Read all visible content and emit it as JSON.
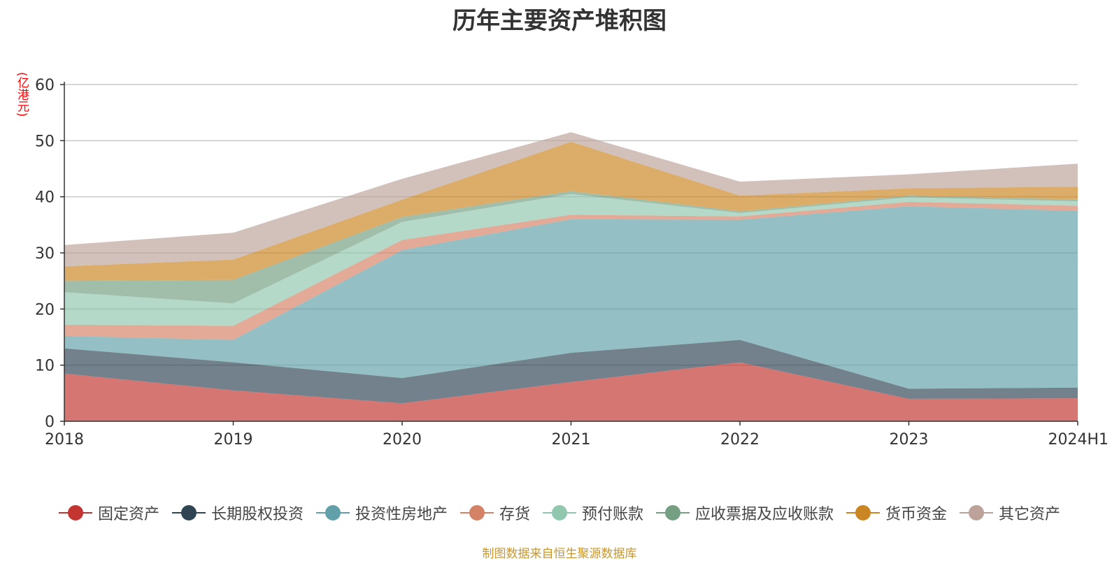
{
  "chart_data": {
    "type": "area",
    "stacked": true,
    "title": "历年主要资产堆积图",
    "ylabel": "(亿港元)",
    "categories": [
      "2018",
      "2019",
      "2020",
      "2021",
      "2022",
      "2023",
      "2024H1"
    ],
    "ylim": [
      0,
      60
    ],
    "yticks": [
      0,
      10,
      20,
      30,
      40,
      50,
      60
    ],
    "grid": true,
    "legend_position": "bottom",
    "series": [
      {
        "name": "固定资产",
        "color": "#c23531",
        "values": [
          8.5,
          5.5,
          3.2,
          7.0,
          10.5,
          4.0,
          4.1
        ]
      },
      {
        "name": "长期股权投资",
        "color": "#2f4554",
        "values": [
          4.5,
          5.0,
          4.5,
          5.2,
          4.0,
          1.8,
          1.9
        ]
      },
      {
        "name": "投资性房地产",
        "color": "#61a0a8",
        "values": [
          2.2,
          4.0,
          22.8,
          23.8,
          21.4,
          32.5,
          31.5
        ]
      },
      {
        "name": "存货",
        "color": "#d48265",
        "values": [
          2.0,
          2.5,
          1.8,
          0.8,
          0.6,
          0.8,
          0.9
        ]
      },
      {
        "name": "预付账款",
        "color": "#91c7ae",
        "values": [
          5.8,
          4.0,
          3.2,
          3.7,
          0.6,
          0.8,
          0.8
        ]
      },
      {
        "name": "应收票据及应收账款",
        "color": "#749f83",
        "values": [
          2.0,
          4.2,
          0.9,
          0.5,
          0.3,
          0.3,
          0.3
        ]
      },
      {
        "name": "货币资金",
        "color": "#ca8622",
        "values": [
          2.6,
          3.6,
          3.1,
          8.8,
          2.8,
          1.3,
          2.3
        ]
      },
      {
        "name": "其它资产",
        "color": "#bda29a",
        "values": [
          3.8,
          4.8,
          3.7,
          1.7,
          2.5,
          2.5,
          4.1
        ]
      }
    ]
  },
  "footer": {
    "source_note": "制图数据来自恒生聚源数据库"
  }
}
